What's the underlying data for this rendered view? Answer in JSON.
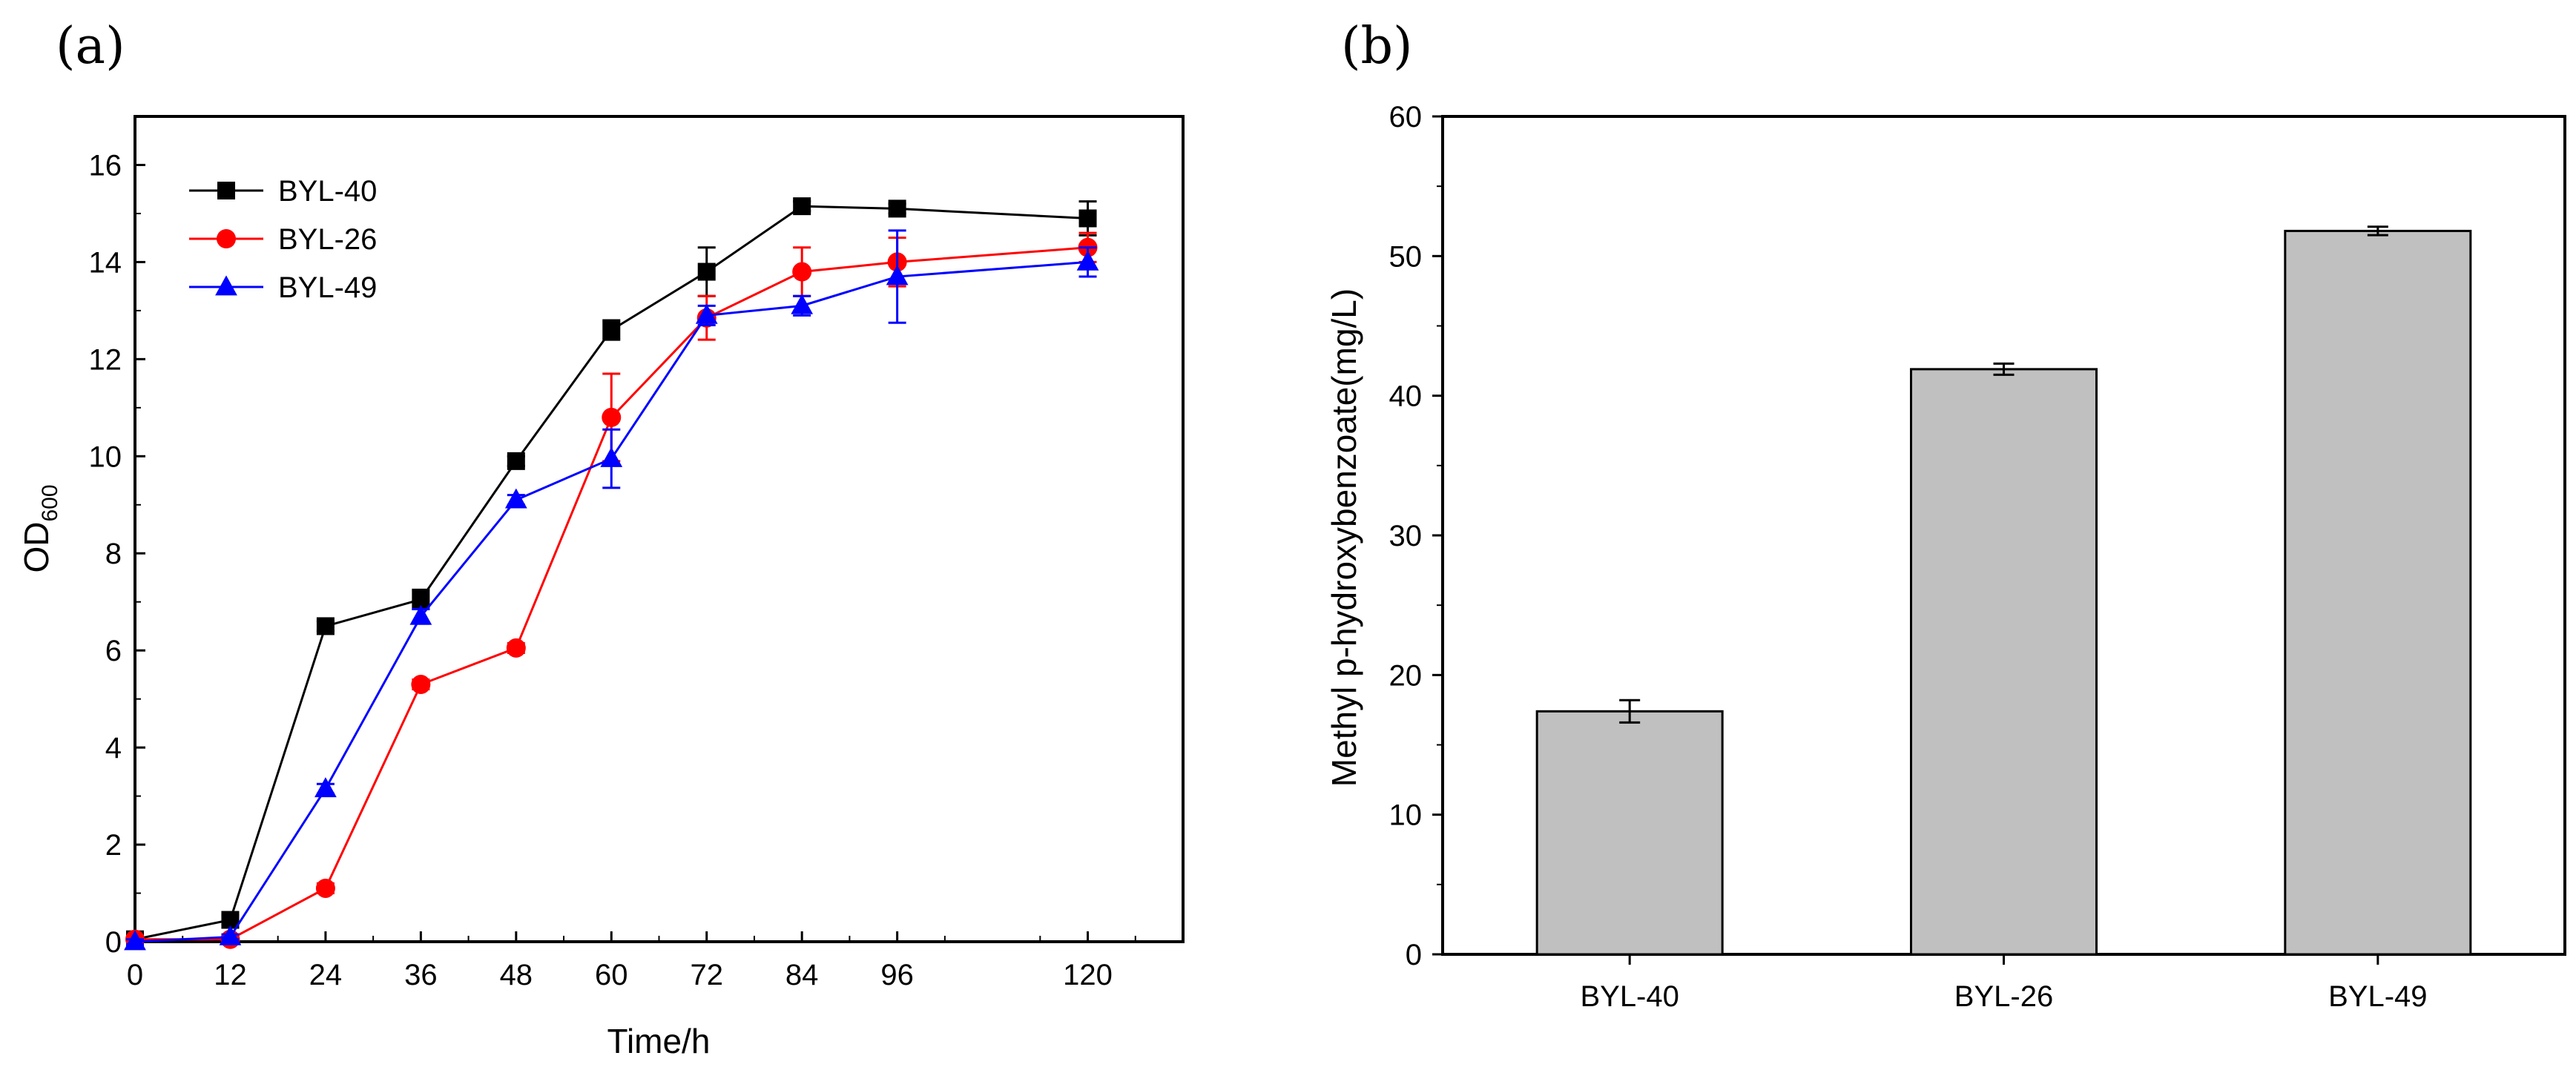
{
  "chart_data": [
    {
      "panel_label": "(a)",
      "type": "line",
      "xlabel": "Time/h",
      "ylabel_main": "OD",
      "ylabel_sub": "600",
      "xlim": [
        0,
        132
      ],
      "ylim": [
        0,
        17
      ],
      "x_ticks": [
        0,
        12,
        24,
        36,
        48,
        60,
        72,
        84,
        96,
        120
      ],
      "y_ticks": [
        0,
        2,
        4,
        6,
        8,
        10,
        12,
        14,
        16
      ],
      "legend_position": "top-left",
      "series": [
        {
          "name": "BYL-40",
          "color": "#000000",
          "marker": "square",
          "x": [
            0,
            12,
            24,
            36,
            48,
            60,
            72,
            84,
            96,
            120
          ],
          "y": [
            0.05,
            0.45,
            6.5,
            7.05,
            9.9,
            12.6,
            13.8,
            15.15,
            15.1,
            14.9
          ],
          "err": [
            0.05,
            0.1,
            0.1,
            0.2,
            0.1,
            0.2,
            0.5,
            0.1,
            0.1,
            0.35
          ]
        },
        {
          "name": "BYL-26",
          "color": "#ff0000",
          "marker": "circle",
          "x": [
            0,
            12,
            24,
            36,
            48,
            60,
            72,
            84,
            96,
            120
          ],
          "y": [
            0.05,
            0.05,
            1.1,
            5.3,
            6.05,
            10.8,
            12.85,
            13.8,
            14.0,
            14.3
          ],
          "err": [
            0.05,
            0.05,
            0.1,
            0.1,
            0.1,
            0.9,
            0.45,
            0.5,
            0.5,
            0.3
          ]
        },
        {
          "name": "BYL-49",
          "color": "#0000ff",
          "marker": "triangle",
          "x": [
            0,
            12,
            24,
            36,
            48,
            60,
            72,
            84,
            96,
            120
          ],
          "y": [
            0.0,
            0.1,
            3.15,
            6.7,
            9.1,
            9.95,
            12.9,
            13.1,
            13.7,
            14.0
          ],
          "err": [
            0.05,
            0.05,
            0.1,
            0.15,
            0.1,
            0.6,
            0.2,
            0.2,
            0.95,
            0.3
          ]
        }
      ]
    },
    {
      "panel_label": "(b)",
      "type": "bar",
      "ylabel": "Methyl p-hydroxybenzoate(mg/L)",
      "xlabel": "",
      "ylim": [
        0,
        60
      ],
      "y_ticks": [
        0,
        10,
        20,
        30,
        40,
        50,
        60
      ],
      "categories": [
        "BYL-40",
        "BYL-26",
        "BYL-49"
      ],
      "values": [
        17.4,
        41.9,
        51.8
      ],
      "err": [
        0.8,
        0.4,
        0.3
      ],
      "bar_color": "#c0c0c0"
    }
  ]
}
